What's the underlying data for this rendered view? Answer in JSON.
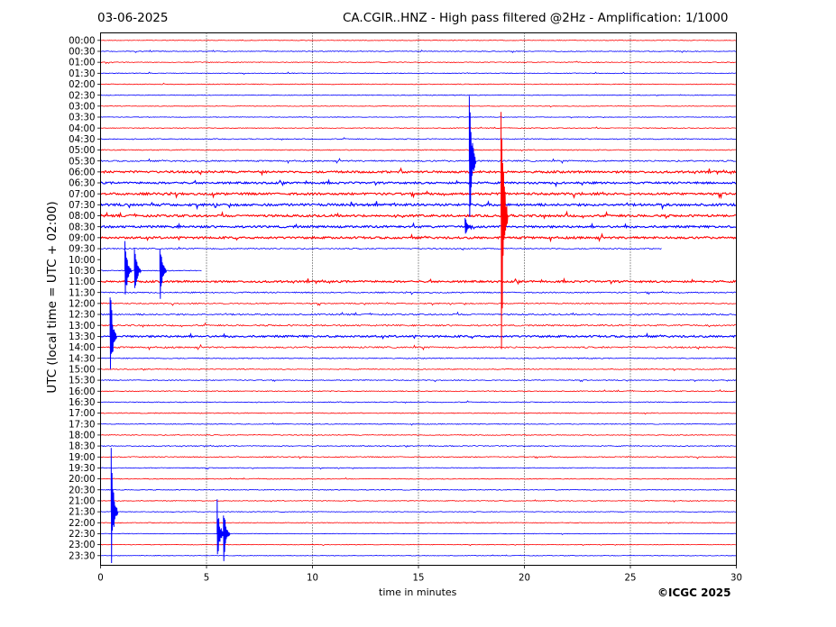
{
  "header": {
    "date": "03-06-2025",
    "title": "CA.CGIR..HNZ - High pass filtered @2Hz - Amplification: 1/1000"
  },
  "footer": {
    "copyright": "©ICGC 2025"
  },
  "chart_data": {
    "type": "line",
    "subtype": "helicorder",
    "xlabel": "time in minutes",
    "ylabel": "UTC (local time = UTC + 02:00)",
    "xlim": [
      0,
      30
    ],
    "x_ticks": [
      0,
      5,
      10,
      15,
      20,
      25,
      30
    ],
    "row_labels": [
      "00:00",
      "00:30",
      "01:00",
      "01:30",
      "02:00",
      "02:30",
      "03:00",
      "03:30",
      "04:00",
      "04:30",
      "05:00",
      "05:30",
      "06:00",
      "06:30",
      "07:00",
      "07:30",
      "08:00",
      "08:30",
      "09:00",
      "09:30",
      "10:00",
      "10:30",
      "11:00",
      "11:30",
      "12:00",
      "12:30",
      "13:00",
      "13:30",
      "14:00",
      "14:30",
      "15:00",
      "15:30",
      "16:00",
      "16:30",
      "17:00",
      "17:30",
      "18:00",
      "18:30",
      "19:00",
      "19:30",
      "20:00",
      "20:30",
      "21:00",
      "21:30",
      "22:00",
      "22:30",
      "23:00",
      "23:30"
    ],
    "trace_colors": [
      "#ff0000",
      "#0000ff"
    ],
    "grid": {
      "vertical_dotted": true
    },
    "data_end": {
      "row": "09:30",
      "minute": 26.5
    },
    "data_gap": {
      "rows": [
        "10:00"
      ],
      "row_with_partial_data": "10:30",
      "partial_until_minute": 4.8
    },
    "noise_level_by_row": [
      0.6,
      0.8,
      0.8,
      0.7,
      0.8,
      0.7,
      0.6,
      0.6,
      0.8,
      1.0,
      1.0,
      1.5,
      2.2,
      2.0,
      2.3,
      2.5,
      2.3,
      2.2,
      2.2,
      1.2,
      0,
      1.0,
      2.0,
      1.3,
      1.2,
      1.6,
      1.6,
      2.0,
      1.6,
      1.0,
      0.9,
      0.9,
      1.0,
      0.9,
      0.9,
      0.8,
      0.9,
      1.0,
      1.0,
      0.8,
      0.8,
      0.8,
      0.8,
      0.7,
      0.7,
      0.6,
      0.6,
      0.6
    ],
    "events": [
      {
        "row": "05:30",
        "minute": 17.4,
        "amplitude": 110
      },
      {
        "row": "08:00",
        "minute": 18.9,
        "amplitude": 200
      },
      {
        "row": "08:30",
        "minute": 17.2,
        "amplitude": 12
      },
      {
        "row": "10:30",
        "minute": 1.15,
        "amplitude": 45
      },
      {
        "row": "10:30",
        "minute": 1.6,
        "amplitude": 38
      },
      {
        "row": "10:30",
        "minute": 2.8,
        "amplitude": 40
      },
      {
        "row": "13:30",
        "minute": 0.45,
        "amplitude": 70
      },
      {
        "row": "21:30",
        "minute": 0.5,
        "amplitude": 75
      },
      {
        "row": "22:30",
        "minute": 5.5,
        "amplitude": 45
      },
      {
        "row": "22:30",
        "minute": 5.8,
        "amplitude": 40
      }
    ]
  }
}
